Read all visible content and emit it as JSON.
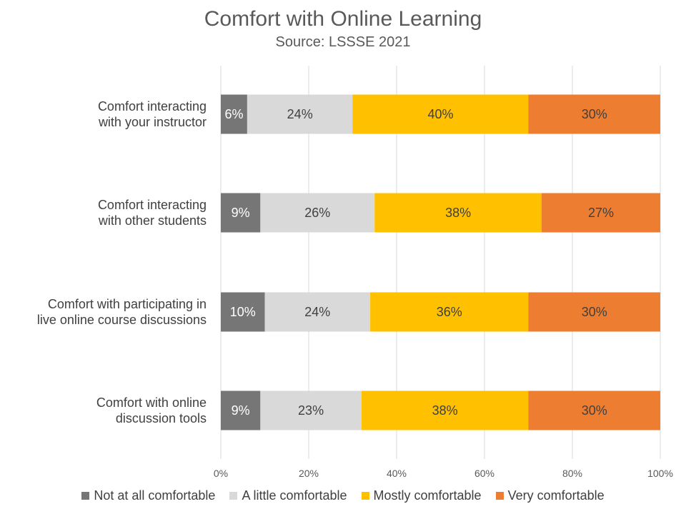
{
  "chart_data": {
    "type": "bar",
    "orientation": "horizontal",
    "stacked": true,
    "title": "Comfort with Online Learning",
    "subtitle": "Source: LSSSE 2021",
    "categories": [
      [
        "Comfort interacting",
        "with your instructor"
      ],
      [
        "Comfort interacting",
        "with other students"
      ],
      [
        "Comfort with participating in",
        "live online course discussions"
      ],
      [
        "Comfort with online",
        "discussion tools"
      ]
    ],
    "series": [
      {
        "name": "Not at all comfortable",
        "color": "#767676",
        "label_color": "#ffffff",
        "values": [
          6,
          9,
          10,
          9
        ],
        "labels": [
          "6%",
          "9%",
          "10%",
          "9%"
        ]
      },
      {
        "name": "A little comfortable",
        "color": "#d9d9d9",
        "label_color": "#404040",
        "values": [
          24,
          26,
          24,
          23
        ],
        "labels": [
          "24%",
          "26%",
          "24%",
          "23%"
        ]
      },
      {
        "name": "Mostly comfortable",
        "color": "#ffc000",
        "label_color": "#404040",
        "values": [
          40,
          38,
          36,
          38
        ],
        "labels": [
          "40%",
          "38%",
          "36%",
          "38%"
        ]
      },
      {
        "name": "Very comfortable",
        "color": "#ed7d31",
        "label_color": "#404040",
        "values": [
          30,
          27,
          30,
          30
        ],
        "labels": [
          "30%",
          "27%",
          "30%",
          "30%"
        ]
      }
    ],
    "xlim": [
      0,
      100
    ],
    "xticks": [
      "0%",
      "20%",
      "40%",
      "60%",
      "80%",
      "100%"
    ],
    "xgrid": true,
    "legend_position": "bottom"
  }
}
